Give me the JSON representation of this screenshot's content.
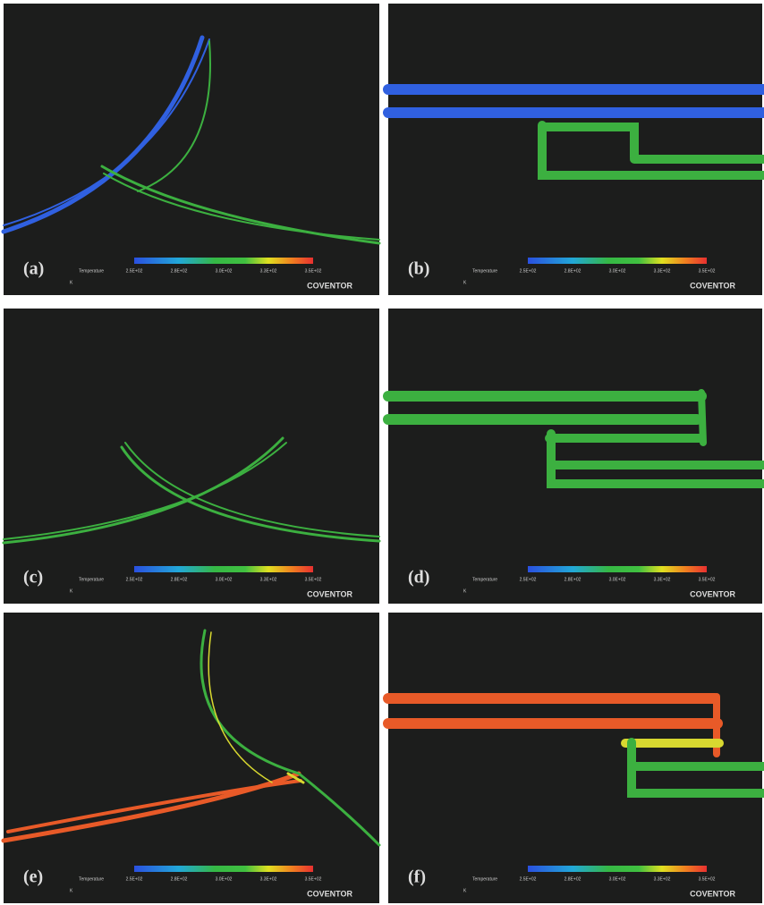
{
  "figure": {
    "panels": [
      {
        "label": "(a)",
        "legend_title": "Temperature",
        "ticks": [
          "2.5E+02",
          "2.8E+02",
          "3.0E+02",
          "3.3E+02",
          "3.5E+02"
        ],
        "unit": "K",
        "brand": "COVENTOR"
      },
      {
        "label": "(b)",
        "legend_title": "Temperature",
        "ticks": [
          "2.5E+02",
          "2.8E+02",
          "3.0E+02",
          "3.3E+02",
          "3.5E+02"
        ],
        "unit": "K",
        "brand": "COVENTOR"
      },
      {
        "label": "(c)",
        "legend_title": "Temperature",
        "ticks": [
          "2.5E+02",
          "2.8E+02",
          "3.0E+02",
          "3.3E+02",
          "3.5E+02"
        ],
        "unit": "K",
        "brand": "COVENTOR"
      },
      {
        "label": "(d)",
        "legend_title": "Temperature",
        "ticks": [
          "2.5E+02",
          "2.8E+02",
          "3.0E+02",
          "3.3E+02",
          "3.5E+02"
        ],
        "unit": "K",
        "brand": "COVENTOR"
      },
      {
        "label": "(e)",
        "legend_title": "Temperature",
        "ticks": [
          "2.5E+02",
          "2.8E+02",
          "3.0E+02",
          "3.3E+02",
          "3.5E+02"
        ],
        "unit": "K",
        "brand": "COVENTOR"
      },
      {
        "label": "(f)",
        "legend_title": "Temperature",
        "ticks": [
          "2.5E+02",
          "2.8E+02",
          "3.0E+02",
          "3.3E+02",
          "3.5E+02"
        ],
        "unit": "K",
        "brand": "COVENTOR"
      }
    ]
  }
}
